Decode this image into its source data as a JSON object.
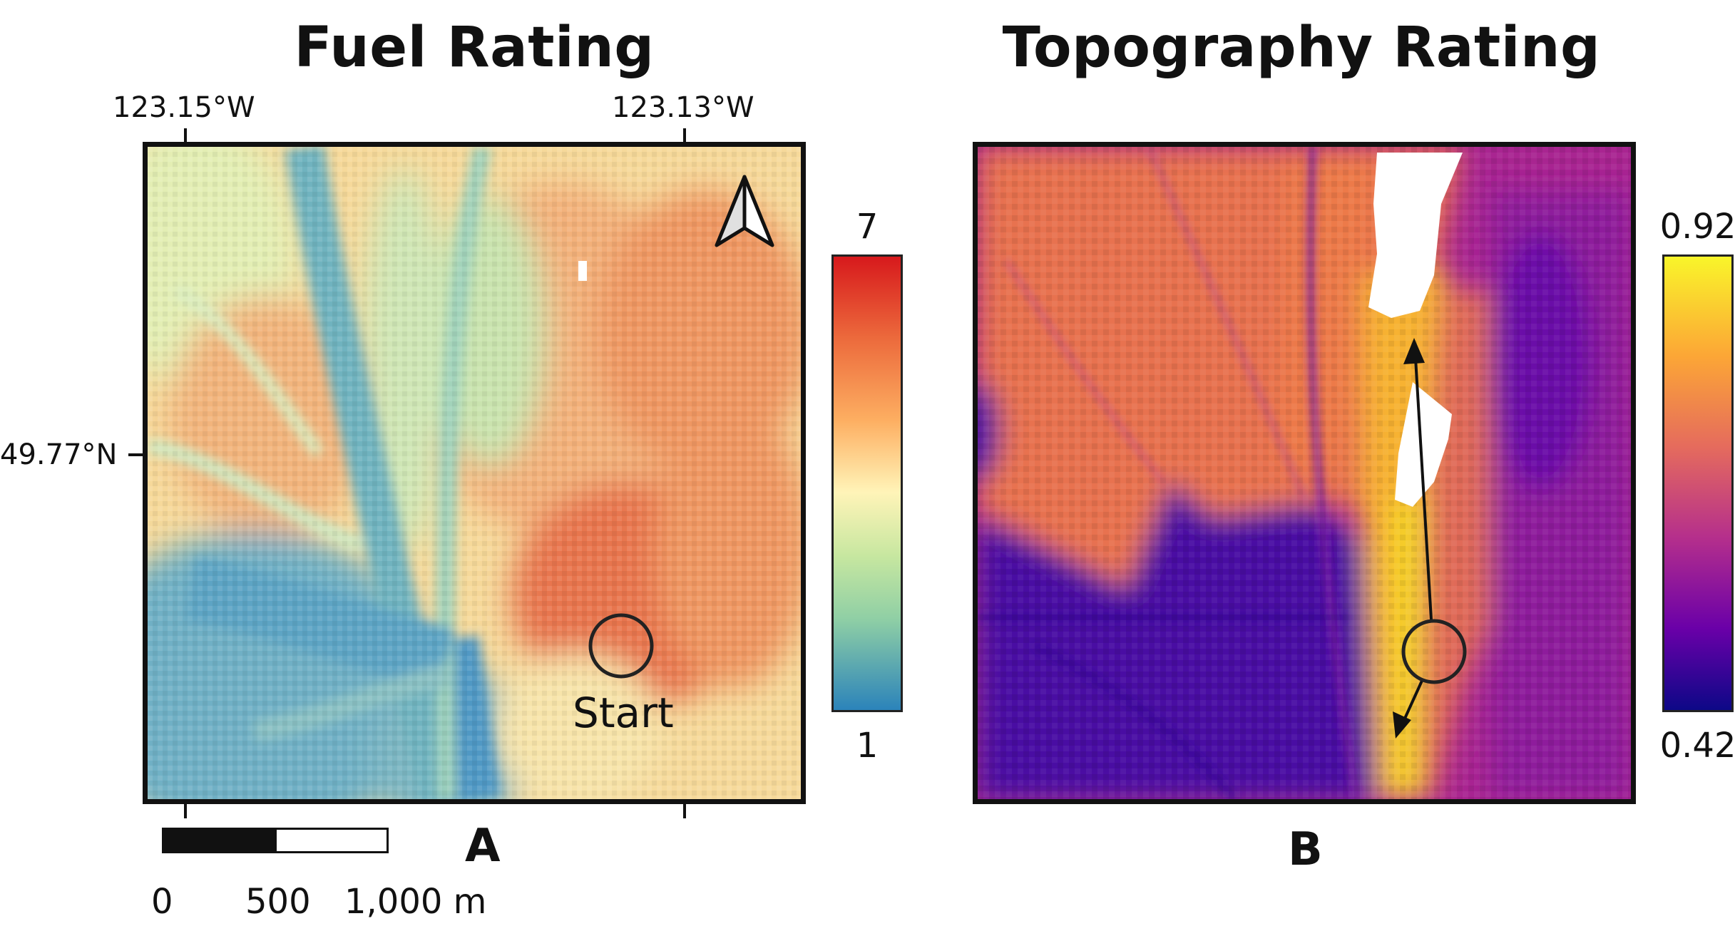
{
  "panel_a": {
    "title": "Fuel Rating",
    "letter": "A",
    "colorbar_max": "7",
    "colorbar_min": "1",
    "start_label": "Start",
    "colormap": [
      "#d7191c",
      "#fdae61",
      "#ffffbf",
      "#abdda4",
      "#2b83ba"
    ]
  },
  "panel_b": {
    "title": "Topography Rating",
    "letter": "B",
    "colorbar_max": "0.92",
    "colorbar_min": "0.42",
    "colormap": [
      "#f0f921",
      "#fca636",
      "#e16462",
      "#b12a90",
      "#6a00a8",
      "#0d0887"
    ]
  },
  "coordinates": {
    "lon_left": "123.15°W",
    "lon_right": "123.13°W",
    "lat": "49.77°N"
  },
  "scale_bar": {
    "label_0": "0",
    "label_mid": "500",
    "label_max": "1,000 m"
  },
  "icons": {
    "north_arrow": "north-arrow-icon",
    "start_marker": "circle-marker-icon"
  }
}
